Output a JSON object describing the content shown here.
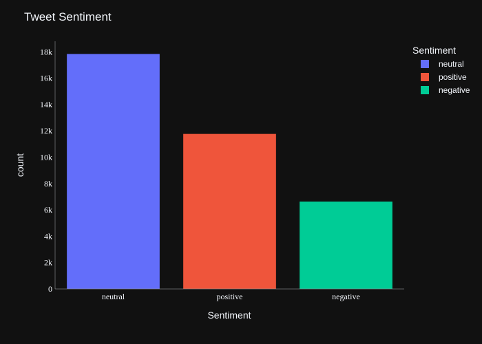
{
  "chart_data": {
    "type": "bar",
    "title": "Tweet Sentiment",
    "xlabel": "Sentiment",
    "ylabel": "count",
    "categories": [
      "neutral",
      "positive",
      "negative"
    ],
    "series": [
      {
        "name": "neutral",
        "category": "neutral",
        "value": 17850,
        "color": "#636efa"
      },
      {
        "name": "positive",
        "category": "positive",
        "value": 11780,
        "color": "#ef553b"
      },
      {
        "name": "negative",
        "category": "negative",
        "value": 6650,
        "color": "#00cc96"
      }
    ],
    "ylim": [
      0,
      18800
    ],
    "yticks": [
      0,
      2000,
      4000,
      6000,
      8000,
      10000,
      12000,
      14000,
      16000,
      18000
    ],
    "ytick_labels": [
      "0",
      "2k",
      "4k",
      "6k",
      "8k",
      "10k",
      "12k",
      "14k",
      "16k",
      "18k"
    ],
    "legend": {
      "title": "Sentiment",
      "placement": "top-right"
    },
    "grid": false,
    "background": "#111111"
  }
}
